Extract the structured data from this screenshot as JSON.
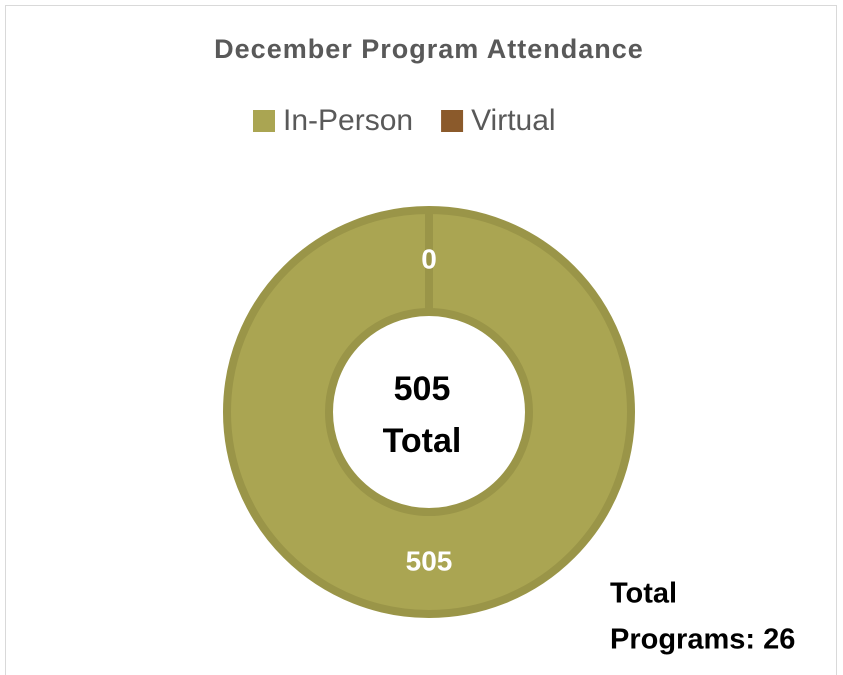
{
  "chart_data": {
    "type": "donut",
    "title": "December Program Attendance",
    "categories": [
      "In-Person",
      "Virtual"
    ],
    "values": [
      505,
      0
    ],
    "colors": [
      "#aaa552",
      "#8b5a2b"
    ],
    "legend": "top",
    "center_text": [
      "505",
      "Total"
    ],
    "note": [
      "Total",
      "Programs: 26"
    ]
  }
}
